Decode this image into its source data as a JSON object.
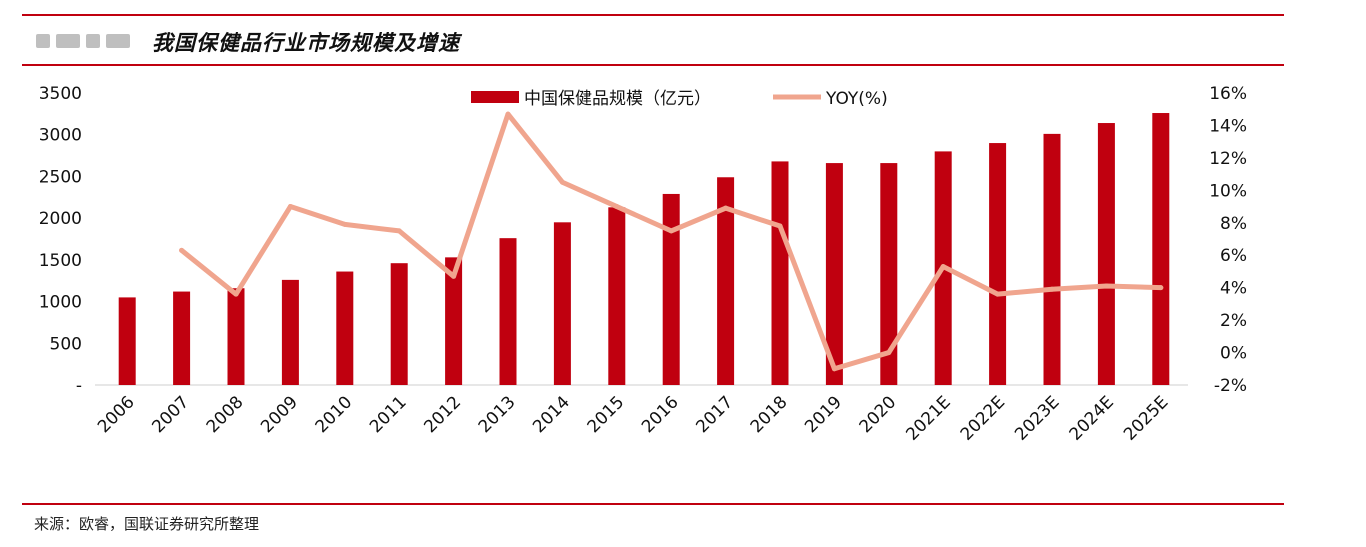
{
  "header": {
    "title": "我国保健品行业市场规模及增速"
  },
  "footer": {
    "source": "来源：欧睿，国联证券研究所整理"
  },
  "colors": {
    "bar": "#c0000f",
    "line": "#f0a58e",
    "rule": "#c0000f"
  },
  "chart_data": {
    "type": "bar",
    "title": "我国保健品行业市场规模及增速",
    "categories": [
      "2006",
      "2007",
      "2008",
      "2009",
      "2010",
      "2011",
      "2012",
      "2013",
      "2014",
      "2015",
      "2016",
      "2017",
      "2018",
      "2019",
      "2020",
      "2021E",
      "2022E",
      "2023E",
      "2024E",
      "2025E"
    ],
    "series": [
      {
        "name": "中国保健品规模（亿元）",
        "type": "bar",
        "axis": "left",
        "values": [
          1050,
          1120,
          1160,
          1260,
          1360,
          1460,
          1530,
          1760,
          1950,
          2130,
          2290,
          2490,
          2680,
          2660,
          2660,
          2800,
          2900,
          3010,
          3140,
          3260
        ]
      },
      {
        "name": "YOY(%)",
        "type": "line",
        "axis": "right",
        "values": [
          null,
          6.3,
          3.6,
          9.0,
          7.9,
          7.5,
          4.7,
          14.7,
          10.5,
          9.0,
          7.5,
          8.9,
          7.8,
          -1.0,
          0.0,
          5.3,
          3.6,
          3.9,
          4.1,
          4.0
        ]
      }
    ],
    "left_axis": {
      "ylim": [
        0,
        3500
      ],
      "ticks": [
        "-",
        "500",
        "1000",
        "1500",
        "2000",
        "2500",
        "3000",
        "3500"
      ]
    },
    "right_axis": {
      "ylim": [
        -2,
        16
      ],
      "ticks": [
        "-2%",
        "0%",
        "2%",
        "4%",
        "6%",
        "8%",
        "10%",
        "12%",
        "14%",
        "16%"
      ]
    },
    "legend": {
      "position": "top-center",
      "entries": [
        "中国保健品规模（亿元）",
        "YOY(%)"
      ]
    },
    "grid": false
  }
}
